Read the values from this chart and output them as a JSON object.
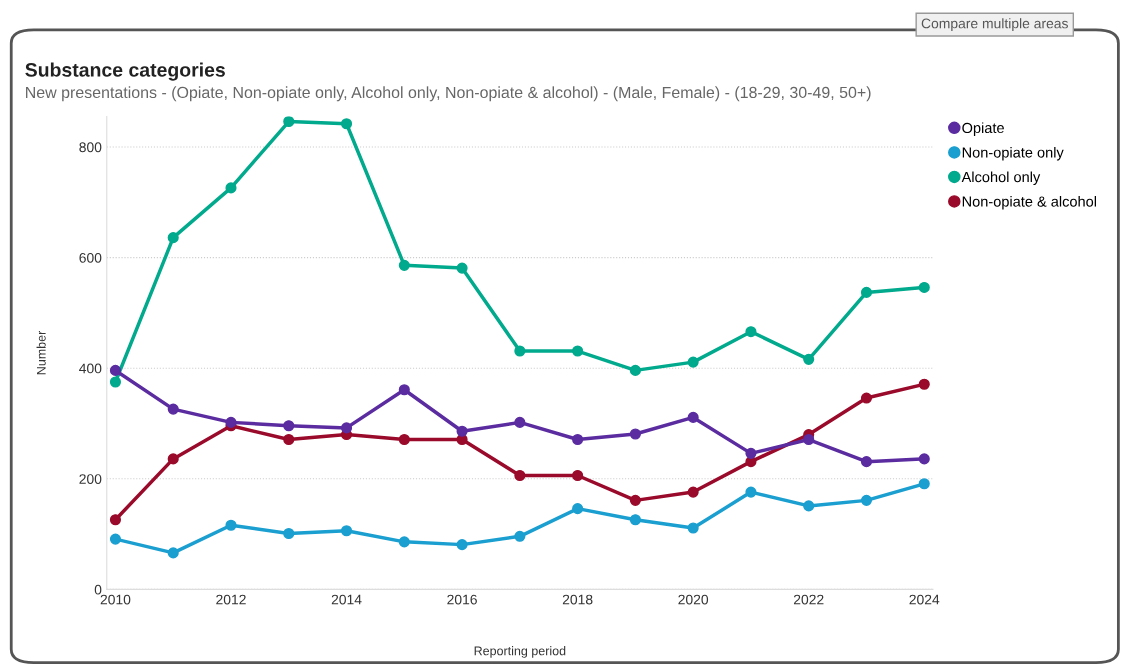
{
  "chart_data": {
    "type": "line",
    "title": "Substance categories",
    "subtitle": "New presentations - (Opiate, Non-opiate only, Alcohol only, Non-opiate & alcohol) - (Male, Female) - (18-29, 30-49, 50+)",
    "xlabel": "Reporting period",
    "ylabel": "Number",
    "annotations": [
      "Compare multiple areas"
    ],
    "x": [
      2010,
      2011,
      2012,
      2013,
      2014,
      2015,
      2016,
      2017,
      2018,
      2019,
      2020,
      2021,
      2022,
      2023,
      2024
    ],
    "series": [
      {
        "name": "Opiate",
        "color": "#5a2ca0",
        "values": [
          396,
          326,
          302,
          296,
          292,
          361,
          286,
          302,
          271,
          281,
          311,
          246,
          271,
          231,
          236
        ]
      },
      {
        "name": "Non-opiate only",
        "color": "#1a9fd0",
        "values": [
          91,
          66,
          116,
          101,
          106,
          86,
          81,
          96,
          146,
          126,
          111,
          176,
          151,
          161,
          191
        ]
      },
      {
        "name": "Alcohol only",
        "color": "#01a98d",
        "values": [
          375,
          636,
          726,
          846,
          842,
          586,
          581,
          431,
          431,
          396,
          411,
          466,
          416,
          537,
          546
        ]
      },
      {
        "name": "Non-opiate & alcohol",
        "color": "#9a0a2a",
        "values": [
          126,
          236,
          296,
          271,
          280,
          271,
          271,
          206,
          206,
          161,
          176,
          231,
          280,
          346,
          371
        ]
      }
    ],
    "xlim": [
      2009.85,
      2024.15
    ],
    "xticks": [
      2010,
      2012,
      2014,
      2016,
      2018,
      2020,
      2022,
      2024
    ],
    "ylim": [
      0,
      855
    ],
    "yticks": [
      0,
      200,
      400,
      600,
      800
    ],
    "grid": "y",
    "legend": "top right",
    "marker": "circle",
    "line_style": "solid"
  }
}
